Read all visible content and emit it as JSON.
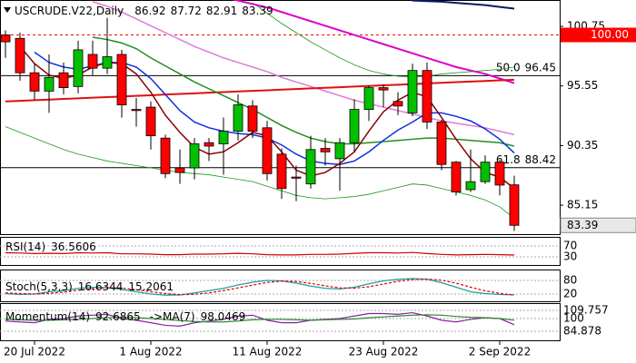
{
  "chart_data": [
    {
      "type": "candlestick",
      "title": "USCRUDE.V22,Daily",
      "categories": [
        null,
        null,
        "20 Jul 2022",
        null,
        null,
        null,
        null,
        null,
        null,
        null,
        "1 Aug 2022",
        null,
        null,
        null,
        null,
        null,
        null,
        null,
        "11 Aug 2022",
        null,
        null,
        null,
        null,
        null,
        null,
        null,
        "23 Aug 2022",
        null,
        null,
        null,
        null,
        null,
        null,
        null,
        "2 Sep 2022",
        null
      ],
      "open": [
        100.0,
        99.7,
        96.7,
        95.1,
        96.7,
        95.5,
        98.3,
        97.1,
        98.3,
        93.5,
        93.7,
        91.0,
        88.4,
        88.4,
        90.6,
        90.5,
        91.6,
        93.8,
        91.9,
        89.6,
        87.6,
        87.0,
        90.1,
        89.2,
        90.6,
        93.5,
        95.4,
        94.2,
        93.2,
        96.9,
        92.4,
        88.9,
        86.5,
        87.2,
        88.9,
        86.92
      ],
      "high": [
        100.4,
        100.2,
        97.5,
        98.3,
        97.6,
        99.5,
        99.5,
        101.5,
        98.7,
        94.5,
        94.2,
        91.3,
        90.0,
        91.0,
        91.0,
        92.8,
        94.8,
        94.3,
        92.5,
        90.1,
        88.6,
        91.2,
        91.0,
        91.0,
        94.4,
        95.6,
        95.7,
        95.0,
        97.5,
        97.6,
        92.6,
        89.0,
        90.0,
        89.5,
        89.1,
        87.72
      ],
      "low": [
        98.0,
        96.0,
        94.3,
        93.2,
        94.8,
        94.9,
        96.5,
        96.6,
        92.8,
        92.0,
        90.0,
        87.5,
        87.0,
        87.4,
        89.0,
        87.8,
        90.8,
        91.0,
        87.3,
        85.7,
        85.5,
        86.6,
        88.6,
        86.4,
        89.8,
        92.5,
        93.7,
        93.0,
        92.9,
        91.8,
        88.2,
        86.0,
        86.3,
        87.0,
        86.0,
        82.91
      ],
      "close": [
        99.4,
        96.7,
        95.1,
        96.3,
        95.4,
        98.7,
        97.1,
        98.1,
        93.9,
        93.4,
        91.2,
        87.9,
        88.0,
        90.5,
        90.3,
        91.6,
        93.9,
        91.6,
        87.9,
        86.6,
        87.5,
        90.0,
        89.8,
        90.6,
        93.5,
        95.4,
        95.2,
        93.8,
        96.9,
        92.4,
        88.7,
        86.3,
        87.2,
        88.9,
        86.9,
        83.39
      ],
      "up_color": "#00c000",
      "down_color": "#ff0000",
      "ylim": [
        82.62,
        103.05
      ],
      "yticks": [
        100.75,
        95.55,
        90.35,
        85.15
      ],
      "series": [
        {
          "color": "#1a9a1a",
          "width": 0.8,
          "values": [
            92.0,
            91.5,
            91.0,
            90.5,
            90.0,
            89.6,
            89.3,
            89.0,
            88.8,
            88.6,
            88.4,
            88.2,
            88.0,
            87.9,
            87.8,
            87.6,
            87.4,
            87.2,
            86.8,
            86.4,
            86.0,
            85.8,
            85.7,
            85.8,
            85.9,
            86.1,
            86.4,
            86.7,
            87.0,
            86.9,
            86.6,
            86.3,
            86.0,
            85.6,
            85.0,
            84.0
          ]
        },
        {
          "color": "#1a9a1a",
          "width": 0.8,
          "values": [
            null,
            null,
            null,
            null,
            null,
            null,
            null,
            null,
            null,
            null,
            null,
            null,
            null,
            null,
            null,
            null,
            null,
            102.8,
            101.9,
            101.0,
            100.2,
            99.4,
            98.7,
            98.0,
            97.4,
            96.9,
            96.6,
            96.4,
            96.3,
            96.4,
            96.6,
            96.7,
            96.8,
            96.9,
            97.0,
            97.2
          ]
        },
        {
          "color": "#e07ad8",
          "width": 1.5,
          "values": [
            null,
            null,
            null,
            null,
            null,
            null,
            102.9,
            102.5,
            102.0,
            101.4,
            100.8,
            100.2,
            99.6,
            99.0,
            98.5,
            98.0,
            97.6,
            97.2,
            96.8,
            96.3,
            95.9,
            95.5,
            95.1,
            94.7,
            94.3,
            94.0,
            93.7,
            93.4,
            93.1,
            92.8,
            92.5,
            92.3,
            92.1,
            91.9,
            91.6,
            91.3
          ]
        },
        {
          "color": "#dd00cc",
          "width": 2,
          "values": [
            null,
            null,
            null,
            null,
            null,
            null,
            null,
            null,
            null,
            null,
            null,
            null,
            null,
            null,
            null,
            103.3,
            103.0,
            102.7,
            102.4,
            102.0,
            101.6,
            101.2,
            100.8,
            100.4,
            100.0,
            99.6,
            99.2,
            98.8,
            98.4,
            98.0,
            97.6,
            97.2,
            96.9,
            96.6,
            96.2,
            95.8
          ]
        },
        {
          "color": "#e01010",
          "width": 2,
          "values": [
            94.2,
            94.25,
            94.31,
            94.36,
            94.42,
            94.47,
            94.53,
            94.58,
            94.63,
            94.69,
            94.74,
            94.8,
            94.85,
            94.9,
            94.96,
            95.01,
            95.07,
            95.12,
            95.17,
            95.23,
            95.28,
            95.34,
            95.39,
            95.44,
            95.5,
            95.55,
            95.61,
            95.66,
            95.71,
            95.77,
            95.82,
            95.88,
            95.93,
            95.98,
            96.04,
            96.09
          ]
        },
        {
          "color": "#0a1a6a",
          "width": 2,
          "values": [
            null,
            null,
            null,
            null,
            null,
            null,
            null,
            null,
            null,
            null,
            null,
            null,
            null,
            null,
            null,
            null,
            null,
            null,
            null,
            null,
            null,
            null,
            null,
            null,
            null,
            null,
            null,
            null,
            103.0,
            102.95,
            102.9,
            102.8,
            102.7,
            102.6,
            102.45,
            102.3
          ]
        },
        {
          "color": "#1f8f1f",
          "width": 1.5,
          "values": [
            null,
            null,
            null,
            null,
            null,
            null,
            99.8,
            99.6,
            99.3,
            98.8,
            98.0,
            97.3,
            96.6,
            95.9,
            95.3,
            94.7,
            94.1,
            93.5,
            92.8,
            92.1,
            91.5,
            91.0,
            90.7,
            90.5,
            90.5,
            90.6,
            90.7,
            90.8,
            90.9,
            91.0,
            91.0,
            90.9,
            90.8,
            90.7,
            90.6,
            90.3
          ]
        },
        {
          "color": "#1030e0",
          "width": 1.5,
          "values": [
            null,
            null,
            98.5,
            97.6,
            97.2,
            97.0,
            97.3,
            97.6,
            97.6,
            97.2,
            96.2,
            94.8,
            93.4,
            92.4,
            91.9,
            91.6,
            91.4,
            91.3,
            91.0,
            90.4,
            89.6,
            89.0,
            88.8,
            88.7,
            89.0,
            89.8,
            90.8,
            91.7,
            92.4,
            93.2,
            93.2,
            92.9,
            92.5,
            91.8,
            90.9,
            89.7
          ]
        },
        {
          "color": "#8b0000",
          "width": 1.5,
          "values": [
            null,
            99.0,
            97.5,
            96.5,
            96.2,
            96.5,
            97.2,
            97.6,
            97.5,
            96.6,
            95.0,
            93.0,
            91.5,
            90.2,
            89.6,
            89.8,
            90.6,
            91.5,
            91.2,
            89.8,
            88.2,
            87.7,
            88.0,
            88.8,
            89.8,
            91.6,
            93.3,
            94.3,
            95.0,
            94.6,
            92.8,
            90.9,
            89.2,
            88.0,
            87.6,
            86.6
          ]
        }
      ],
      "hlines": [
        {
          "label": "50.0",
          "value": 96.45
        },
        {
          "label": "61.8",
          "value": 88.42
        }
      ],
      "marker_line": {
        "value": 100,
        "label": "100.00",
        "color": "#ff0000"
      }
    },
    {
      "type": "line",
      "title": "RSI(14)",
      "ylim": [
        0,
        100
      ],
      "yticks": [
        70,
        30
      ],
      "series": [
        {
          "color": "#d00000",
          "values": [
            45,
            44,
            42,
            43,
            42,
            45,
            44,
            45,
            41,
            41,
            40,
            38,
            38,
            40,
            40,
            41,
            43,
            41,
            38,
            37,
            37,
            39,
            39,
            40,
            43,
            45,
            45,
            44,
            46,
            42,
            39,
            37,
            38,
            39,
            38,
            36.5606
          ]
        }
      ]
    },
    {
      "type": "line",
      "title": "Stoch(5,3,3)",
      "ylim": [
        0,
        100
      ],
      "yticks": [
        80,
        20
      ],
      "series": [
        {
          "color": "#20a0a0",
          "values": [
            22,
            18,
            20,
            30,
            35,
            45,
            50,
            48,
            40,
            30,
            20,
            15,
            16,
            25,
            35,
            45,
            60,
            72,
            80,
            78,
            68,
            55,
            45,
            42,
            50,
            65,
            78,
            85,
            88,
            85,
            70,
            50,
            30,
            22,
            18,
            16.6344
          ]
        },
        {
          "color": "#e00000",
          "dash": true,
          "values": [
            25,
            22,
            20,
            23,
            28,
            37,
            43,
            48,
            46,
            39,
            30,
            22,
            17,
            19,
            25,
            35,
            47,
            59,
            71,
            77,
            75,
            67,
            56,
            47,
            46,
            52,
            64,
            76,
            84,
            86,
            81,
            68,
            50,
            34,
            23,
            15.2061
          ]
        }
      ]
    },
    {
      "type": "line",
      "title": "Momentum(14)",
      "ylim": [
        74.06,
        115.17
      ],
      "yticks": [
        109.757,
        100,
        84.878
      ],
      "series": [
        {
          "color": "#8a20a0",
          "values": [
            97,
            96,
            95,
            99,
            100,
            103,
            104,
            105,
            100,
            98,
            95,
            92,
            91,
            95,
            97,
            99,
            103,
            104,
            98,
            95,
            95,
            98,
            99,
            100,
            103,
            106,
            106,
            105,
            107,
            103,
            98,
            96,
            99,
            101,
            100,
            92.6865
          ]
        },
        {
          "name": "->MA(7)",
          "color": "#2a8a2a",
          "values": [
            99,
            98.5,
            98,
            98,
            98.5,
            99,
            100,
            101,
            101.5,
            101,
            100,
            99,
            97.5,
            96.5,
            96,
            96,
            97,
            98.5,
            99,
            99,
            98.5,
            98,
            98.5,
            99,
            99.5,
            101,
            102,
            103,
            104,
            104.5,
            104,
            102.5,
            101.5,
            101,
            100,
            98.0469
          ]
        }
      ]
    }
  ]
}
